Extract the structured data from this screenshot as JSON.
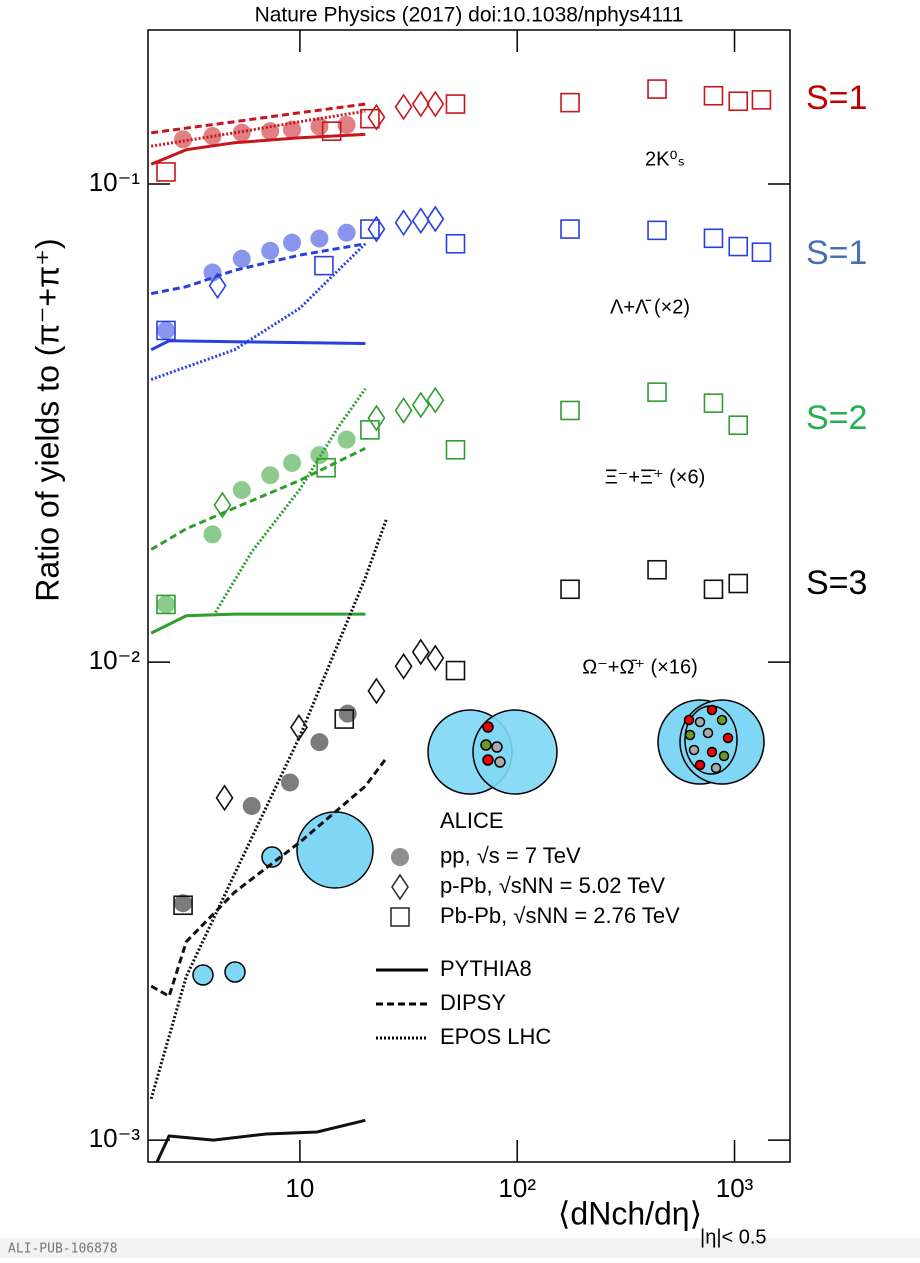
{
  "chart_data": {
    "type": "scatter",
    "title": "Nature Physics (2017) doi:10.1038/nphys4111",
    "y_label": "Ratio of yields to (π⁻+π⁺)",
    "x_label": "⟨dNch/dη⟩",
    "x_label_sub": "|η|< 0.5",
    "footer": "ALI-PUB-106878",
    "xlog": true,
    "ylog": true,
    "xlim": [
      2,
      1800
    ],
    "ylim": [
      0.0009,
      0.21
    ],
    "xticks": [
      10,
      {
        "value": 100,
        "label": "10²"
      },
      {
        "value": 1000,
        "label": "10³"
      }
    ],
    "yticks": [
      {
        "value": 0.001,
        "label": "10⁻³"
      },
      {
        "value": 0.01,
        "label": "10⁻²"
      },
      {
        "value": 0.1,
        "label": "10⁻¹"
      }
    ],
    "legend": {
      "title": "ALICE",
      "systems": [
        {
          "label": "pp, √s = 7 TeV",
          "marker": "circle"
        },
        {
          "label": "p-Pb, √sNN = 5.02 TeV",
          "marker": "diamond"
        },
        {
          "label": "Pb-Pb, √sNN = 2.76 TeV",
          "marker": "square"
        }
      ],
      "models": [
        {
          "label": "PYTHIA8",
          "dash": "solid"
        },
        {
          "label": "DIPSY",
          "dash": "dashed"
        },
        {
          "label": "EPOS LHC",
          "dash": "dotted"
        }
      ]
    },
    "groups": [
      {
        "label": "2K⁰ₛ",
        "side_label": "S=1",
        "color": "#c8161d",
        "side_color": "#c00000",
        "points": [
          {
            "x": [
              2.9,
              3.96,
              5.4,
              7.3,
              9.2,
              12.3,
              16.4
            ],
            "y": [
              0.124,
              0.126,
              0.128,
              0.129,
              0.13,
              0.132,
              0.133
            ]
          },
          {
            "x": [
              22.5,
              30,
              36,
              42
            ],
            "y": [
              0.138,
              0.145,
              0.147,
              0.147
            ]
          },
          {
            "x": [
              2.42,
              14,
              21,
              52,
              175,
              440,
              800,
              1040,
              1330
            ],
            "y": [
              0.106,
              0.129,
              0.137,
              0.147,
              0.148,
              0.158,
              0.153,
              0.149,
              0.15
            ]
          }
        ],
        "models": [
          {
            "x": [
              2.07,
              3,
              5,
              10,
              20
            ],
            "y": [
              0.11,
              0.118,
              0.122,
              0.125,
              0.127
            ]
          },
          {
            "x": [
              2.07,
              5,
              10,
              20
            ],
            "y": [
              0.128,
              0.135,
              0.141,
              0.147
            ]
          },
          {
            "x": [
              2.07,
              5,
              10,
              20
            ],
            "y": [
              0.12,
              0.128,
              0.135,
              0.142
            ]
          }
        ]
      },
      {
        "label": "Λ+Λ̄ (×2)",
        "side_label": "S=1",
        "color": "#2a3fe0",
        "side_color": "#4a6fb5",
        "points": [
          {
            "x": [
              2.42,
              3.96,
              5.4,
              7.3,
              9.2,
              12.3,
              16.4
            ],
            "y": [
              0.0494,
              0.0653,
              0.0698,
              0.0725,
              0.0754,
              0.0769,
              0.0791
            ]
          },
          {
            "x": [
              4.18,
              22.5,
              30,
              36,
              42
            ],
            "y": [
              0.0613,
              0.0805,
              0.083,
              0.0838,
              0.0845
            ]
          },
          {
            "x": [
              2.42,
              12.9,
              21,
              52,
              175,
              440,
              800,
              1040,
              1330
            ],
            "y": [
              0.0494,
              0.0675,
              0.0805,
              0.075,
              0.0805,
              0.08,
              0.077,
              0.074,
              0.072
            ]
          }
        ],
        "models": [
          {
            "x": [
              2.07,
              2.5,
              5,
              10,
              20
            ],
            "y": [
              0.045,
              0.047,
              0.0468,
              0.0466,
              0.0464
            ]
          },
          {
            "x": [
              2.07,
              3,
              5,
              10,
              20
            ],
            "y": [
              0.059,
              0.061,
              0.066,
              0.071,
              0.075
            ]
          },
          {
            "x": [
              2.07,
              5,
              10,
              15,
              20
            ],
            "y": [
              0.039,
              0.045,
              0.055,
              0.066,
              0.075
            ]
          }
        ]
      },
      {
        "label": "Ξ⁻+Ξ̄⁺ (×6)",
        "side_label": "S=2",
        "color": "#2f9e2f",
        "side_color": "#22b14c",
        "points": [
          {
            "x": [
              2.42,
              3.96,
              5.4,
              7.3,
              9.2,
              12.3,
              16.4
            ],
            "y": [
              0.0132,
              0.0185,
              0.0229,
              0.0246,
              0.0261,
              0.0271,
              0.0292
            ]
          },
          {
            "x": [
              4.4,
              22.5,
              30,
              36,
              42
            ],
            "y": [
              0.0213,
              0.0324,
              0.0336,
              0.0345,
              0.0353
            ]
          },
          {
            "x": [
              2.42,
              13.2,
              21,
              52,
              175,
              440,
              800,
              1040
            ],
            "y": [
              0.0132,
              0.0255,
              0.0306,
              0.0278,
              0.0336,
              0.0367,
              0.0348,
              0.0313
            ]
          }
        ],
        "models": [
          {
            "x": [
              2.07,
              3,
              5,
              10,
              20
            ],
            "y": [
              0.0115,
              0.0125,
              0.0126,
              0.0126,
              0.0126
            ]
          },
          {
            "x": [
              2.07,
              3,
              5,
              10,
              20
            ],
            "y": [
              0.0172,
              0.019,
              0.021,
              0.024,
              0.028
            ]
          },
          {
            "x": [
              4,
              6,
              10,
              15,
              20
            ],
            "y": [
              0.0125,
              0.017,
              0.023,
              0.031,
              0.0373
            ]
          }
        ]
      },
      {
        "label": "Ω⁻+Ω̄⁺ (×16)",
        "side_label": "S=3",
        "color": "#111111",
        "side_color": "#000000",
        "points": [
          {
            "x": [
              2.9,
              6,
              9,
              12.3,
              16.6
            ],
            "y": [
              0.00313,
              0.005,
              0.0056,
              0.0068,
              0.0078
            ]
          },
          {
            "x": [
              4.5,
              9.9,
              22.5,
              30,
              36,
              42
            ],
            "y": [
              0.0052,
              0.0073,
              0.0087,
              0.0098,
              0.0105,
              0.0102
            ]
          },
          {
            "x": [
              2.9,
              16,
              52,
              175,
              440,
              800,
              1040
            ],
            "y": [
              0.0031,
              0.0076,
              0.0096,
              0.0142,
              0.0156,
              0.0142,
              0.0146
            ]
          }
        ],
        "models": [
          {
            "x": [
              2.2,
              2.5,
              4,
              7,
              12,
              20
            ],
            "y": [
              0.0009,
              0.00102,
              0.001,
              0.00103,
              0.00104,
              0.0011
            ]
          },
          {
            "x": [
              2.07,
              2.5,
              3,
              5,
              10,
              20,
              25
            ],
            "y": [
              0.0021,
              0.002,
              0.0026,
              0.0033,
              0.0042,
              0.0055,
              0.0063
            ]
          },
          {
            "x": [
              2.07,
              3,
              5,
              10,
              20,
              25
            ],
            "y": [
              0.00122,
              0.0022,
              0.0036,
              0.007,
              0.015,
              0.0199
            ]
          }
        ]
      }
    ]
  }
}
